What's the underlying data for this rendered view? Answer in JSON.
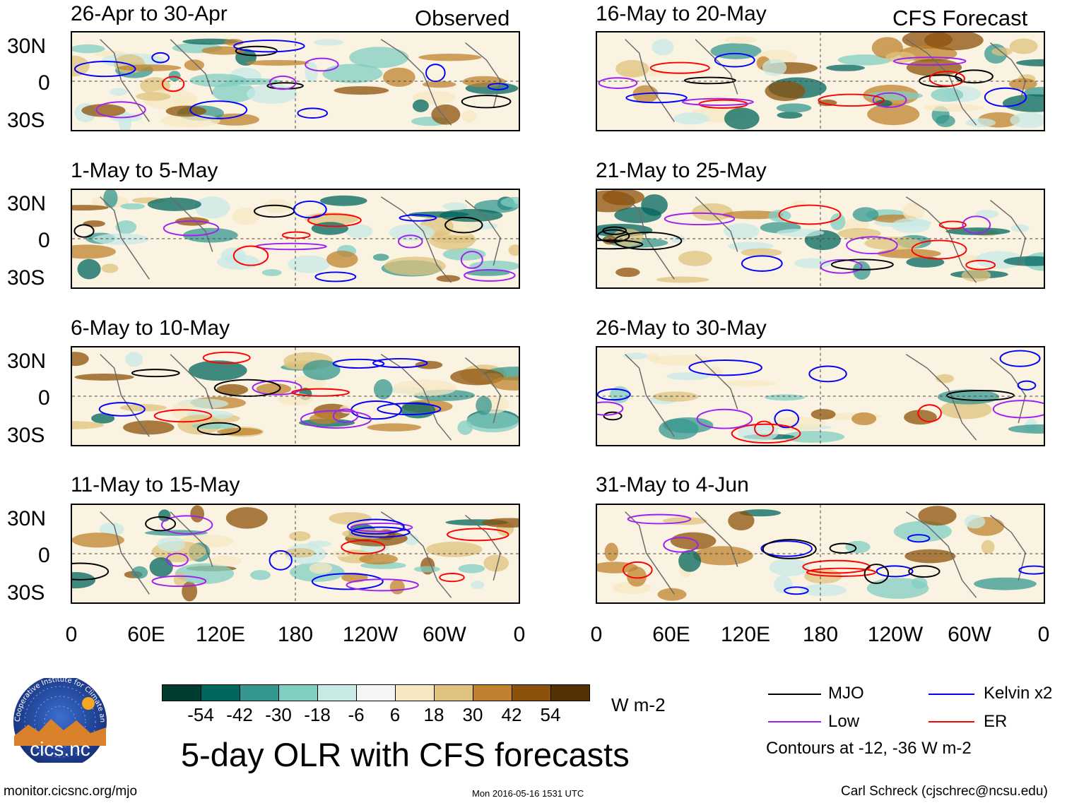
{
  "headers": {
    "observed": "Observed",
    "forecast": "CFS Forecast"
  },
  "panels": [
    {
      "title": "26-Apr to 30-Apr",
      "column": "observed"
    },
    {
      "title": "1-May to 5-May",
      "column": "observed"
    },
    {
      "title": "6-May to 10-May",
      "column": "observed"
    },
    {
      "title": "11-May to 15-May",
      "column": "observed"
    },
    {
      "title": "16-May to 20-May",
      "column": "forecast"
    },
    {
      "title": "21-May to 25-May",
      "column": "forecast"
    },
    {
      "title": "26-May to 30-May",
      "column": "forecast"
    },
    {
      "title": "31-May to 4-Jun",
      "column": "forecast"
    }
  ],
  "lat_labels": [
    "30N",
    "0",
    "30S"
  ],
  "lon_labels": [
    "0",
    "60E",
    "120E",
    "180",
    "120W",
    "60W",
    "0"
  ],
  "colorbar": {
    "labels": [
      "-54",
      "-42",
      "-30",
      "-18",
      "-6",
      "6",
      "18",
      "30",
      "42",
      "54"
    ],
    "colors": [
      "#013c30",
      "#01665e",
      "#35978f",
      "#80cdc1",
      "#c7eae5",
      "#f5f5f5",
      "#f6e8c3",
      "#dfc27d",
      "#bf812d",
      "#8c510a",
      "#543005"
    ],
    "units": "W m-2"
  },
  "legend": {
    "items": [
      {
        "label": "MJO",
        "color": "#000000"
      },
      {
        "label": "Kelvin x2",
        "color": "#0000ff"
      },
      {
        "label": "Low",
        "color": "#a020f0"
      },
      {
        "label": "ER",
        "color": "#ff0000"
      }
    ],
    "note": "Contours at -12, -36 W m-2"
  },
  "main_title": "5-day OLR with CFS forecasts",
  "logo_text": "cics.nc",
  "logo_ring_text": "Cooperative Institute for Climate and Satellites",
  "footer": {
    "url": "monitor.cicsnc.org/mjo",
    "timestamp": "Mon 2016-05-16 1531 UTC",
    "credit": "Carl Schreck (cjschrec@ncsu.edu)"
  }
}
